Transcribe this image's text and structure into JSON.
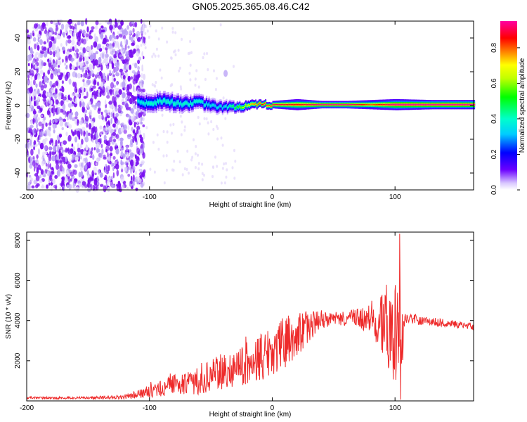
{
  "figure_title": "GN05.2025.365.08.46.C42",
  "chart_data": [
    {
      "type": "heatmap",
      "title": "GN05.2025.365.08.46.C42",
      "xlabel": "Height of straight line (km)",
      "ylabel": "Frequency (Hz)",
      "xlim": [
        -200,
        164
      ],
      "ylim": [
        -50,
        50
      ],
      "xticks": [
        -200,
        -100,
        0,
        100
      ],
      "xtick_labels": [
        "-200",
        "-100",
        "0",
        "100"
      ],
      "yticks": [
        -40,
        -20,
        0,
        20,
        40
      ],
      "ytick_labels": [
        "-40",
        "-20",
        "0",
        "20",
        "40"
      ],
      "colorbar": {
        "label": "Normalized spectral amplitude",
        "range": [
          0,
          0.95
        ],
        "ticks": [
          0.0,
          0.2,
          0.4,
          0.6,
          0.8
        ],
        "tick_labels": [
          "0.0",
          "0.2",
          "0.4",
          "0.6",
          "0.8"
        ],
        "colors": [
          "#ffffff",
          "#6a00ff",
          "#0000ff",
          "#00e5ff",
          "#00ff00",
          "#ffff00",
          "#ff6600",
          "#ff0000",
          "#ff00a0"
        ]
      },
      "noise_region": {
        "x_range": [
          -200,
          -110
        ],
        "freq_range": [
          -50,
          50
        ],
        "level": 0.15
      },
      "signal_track": [
        {
          "x": -110,
          "freq": 2.0,
          "amp": 0.35,
          "spread": 5
        },
        {
          "x": -100,
          "freq": 1.0,
          "amp": 0.4,
          "spread": 5
        },
        {
          "x": -90,
          "freq": 3.0,
          "amp": 0.4,
          "spread": 5
        },
        {
          "x": -80,
          "freq": 1.5,
          "amp": 0.4,
          "spread": 5
        },
        {
          "x": -70,
          "freq": 1.0,
          "amp": 0.4,
          "spread": 4.5
        },
        {
          "x": -60,
          "freq": 2.0,
          "amp": 0.4,
          "spread": 4
        },
        {
          "x": -50,
          "freq": -0.5,
          "amp": 0.35,
          "spread": 4
        },
        {
          "x": -40,
          "freq": -1.0,
          "amp": 0.35,
          "spread": 3.5
        },
        {
          "x": -30,
          "freq": -1.0,
          "amp": 0.5,
          "spread": 3
        },
        {
          "x": -20,
          "freq": 0.0,
          "amp": 0.7,
          "spread": 2.5
        },
        {
          "x": -10,
          "freq": 0.5,
          "amp": 0.85,
          "spread": 2
        },
        {
          "x": 0,
          "freq": 0.5,
          "amp": 0.9,
          "spread": 2
        },
        {
          "x": 20,
          "freq": 0.5,
          "amp": 0.85,
          "spread": 3
        },
        {
          "x": 40,
          "freq": 0.5,
          "amp": 0.95,
          "spread": 2
        },
        {
          "x": 60,
          "freq": 0.5,
          "amp": 0.95,
          "spread": 2
        },
        {
          "x": 80,
          "freq": 0.5,
          "amp": 0.8,
          "spread": 2.5
        },
        {
          "x": 100,
          "freq": 0.5,
          "amp": 0.95,
          "spread": 3
        },
        {
          "x": 130,
          "freq": 0.5,
          "amp": 0.95,
          "spread": 2.5
        },
        {
          "x": 164,
          "freq": 0.5,
          "amp": 0.95,
          "spread": 2.5
        }
      ],
      "spot": {
        "x": -38,
        "freq": 19,
        "amp": 0.15
      }
    },
    {
      "type": "line",
      "xlabel": "Height of straight line (km)",
      "ylabel": "SNR (10 * v/v)",
      "xlim": [
        -200,
        164
      ],
      "ylim": [
        0,
        8400
      ],
      "xticks": [
        -200,
        -100,
        0,
        100
      ],
      "xtick_labels": [
        "-200",
        "-100",
        "0",
        "100"
      ],
      "yticks": [
        2000,
        4000,
        6000,
        8000
      ],
      "ytick_labels": [
        "2000",
        "4000",
        "6000",
        "8000"
      ],
      "series": [
        {
          "name": "SNR",
          "color": "#ee2b2b",
          "envelope_x": [
            -200,
            -150,
            -120,
            -100,
            -80,
            -60,
            -40,
            -20,
            -5,
            5,
            20,
            30,
            40,
            60,
            80,
            90,
            100,
            104,
            108,
            130,
            164
          ],
          "envelope_mean": [
            150,
            150,
            200,
            450,
            800,
            1000,
            1500,
            1900,
            2300,
            2700,
            3300,
            3800,
            4000,
            4100,
            4100,
            4000,
            3600,
            3000,
            4100,
            3950,
            3700
          ],
          "envelope_amp": [
            60,
            60,
            120,
            300,
            500,
            700,
            900,
            1100,
            1400,
            1300,
            1200,
            900,
            400,
            350,
            700,
            1800,
            2800,
            3500,
            250,
            200,
            180
          ]
        }
      ]
    }
  ]
}
